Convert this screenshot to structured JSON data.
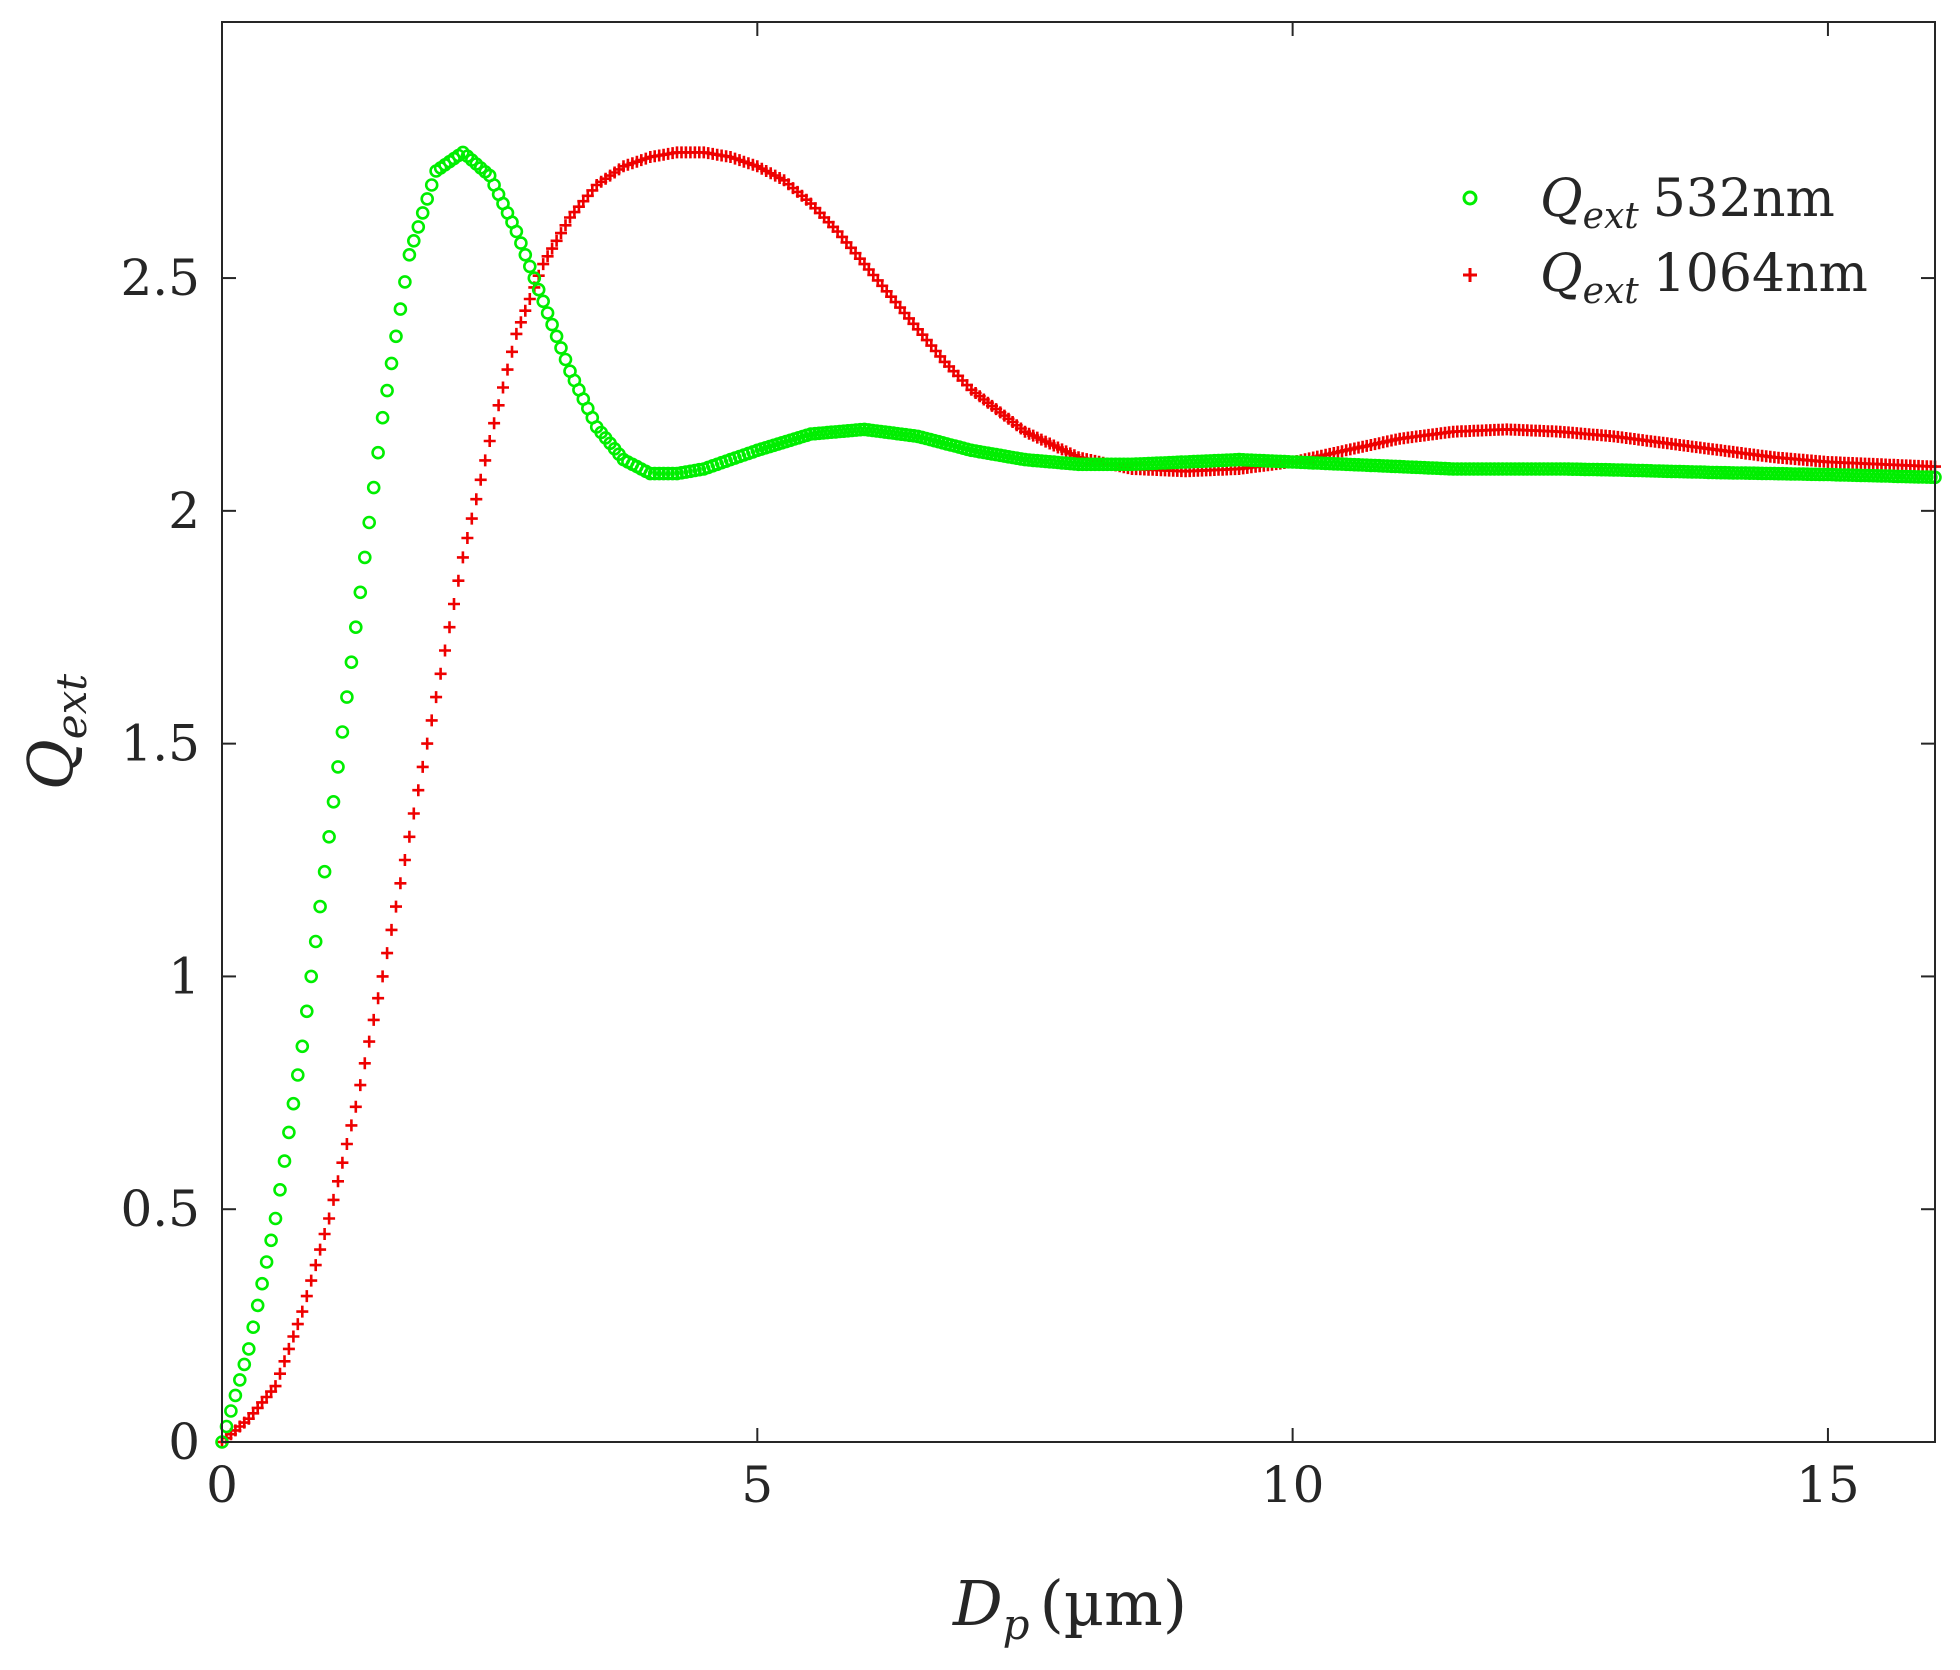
{
  "chart_data": {
    "type": "scatter",
    "xlabel": {
      "symbol": "D",
      "subscript": "p",
      "unit": "(µm)"
    },
    "ylabel": {
      "symbol": "Q",
      "subscript": "ext"
    },
    "xlim": [
      0,
      16
    ],
    "ylim": [
      0,
      3.05
    ],
    "xticks": [
      0,
      5,
      10,
      15
    ],
    "xtick_labels": [
      "0",
      "5",
      "10",
      "15"
    ],
    "yticks": [
      0,
      0.5,
      1,
      1.5,
      2,
      2.5
    ],
    "ytick_labels": [
      "0",
      "0.5",
      "1",
      "1.5",
      "2",
      "2.5"
    ],
    "grid": false,
    "legend_position": "top-right",
    "series": [
      {
        "name": "Q_ext 532nm",
        "legend_symbol": "Q",
        "legend_subscript": "ext",
        "legend_suffix": "532nm",
        "marker": "circle",
        "color": "#00ee00",
        "x": [
          0,
          0.25,
          0.5,
          0.75,
          1.0,
          1.25,
          1.5,
          1.75,
          2.0,
          2.25,
          2.5,
          2.75,
          3.0,
          3.25,
          3.5,
          3.75,
          4.0,
          4.25,
          4.5,
          4.75,
          5.0,
          5.5,
          6.0,
          6.5,
          7.0,
          7.5,
          8.0,
          8.5,
          9.0,
          9.5,
          10.0,
          10.5,
          11.0,
          11.5,
          12.0,
          12.5,
          13.0,
          13.5,
          14.0,
          14.5,
          15.0,
          15.5,
          16.0
        ],
        "y": [
          0,
          0.2,
          0.48,
          0.85,
          1.3,
          1.75,
          2.2,
          2.55,
          2.73,
          2.77,
          2.72,
          2.6,
          2.45,
          2.3,
          2.18,
          2.11,
          2.08,
          2.08,
          2.09,
          2.11,
          2.13,
          2.165,
          2.175,
          2.16,
          2.13,
          2.11,
          2.1,
          2.1,
          2.105,
          2.11,
          2.105,
          2.1,
          2.095,
          2.09,
          2.09,
          2.09,
          2.088,
          2.085,
          2.082,
          2.08,
          2.078,
          2.075,
          2.072
        ]
      },
      {
        "name": "Q_ext 1064nm",
        "legend_symbol": "Q",
        "legend_subscript": "ext",
        "legend_suffix": "1064nm",
        "marker": "plus",
        "color": "#ee0000",
        "x": [
          0,
          0.25,
          0.5,
          0.75,
          1.0,
          1.25,
          1.5,
          1.75,
          2.0,
          2.25,
          2.5,
          2.75,
          3.0,
          3.25,
          3.5,
          3.75,
          4.0,
          4.25,
          4.5,
          4.75,
          5.0,
          5.25,
          5.5,
          5.75,
          6.0,
          6.25,
          6.5,
          6.75,
          7.0,
          7.5,
          8.0,
          8.5,
          9.0,
          9.5,
          10.0,
          10.5,
          11.0,
          11.5,
          12.0,
          12.5,
          13.0,
          13.5,
          14.0,
          14.5,
          15.0,
          15.5,
          16.0
        ],
        "y": [
          0,
          0.05,
          0.12,
          0.28,
          0.48,
          0.72,
          1.0,
          1.3,
          1.6,
          1.9,
          2.15,
          2.38,
          2.53,
          2.63,
          2.7,
          2.74,
          2.76,
          2.77,
          2.77,
          2.76,
          2.74,
          2.71,
          2.66,
          2.6,
          2.53,
          2.46,
          2.39,
          2.32,
          2.26,
          2.17,
          2.115,
          2.09,
          2.085,
          2.09,
          2.105,
          2.13,
          2.155,
          2.17,
          2.175,
          2.17,
          2.16,
          2.145,
          2.13,
          2.115,
          2.105,
          2.1,
          2.095
        ]
      }
    ]
  }
}
